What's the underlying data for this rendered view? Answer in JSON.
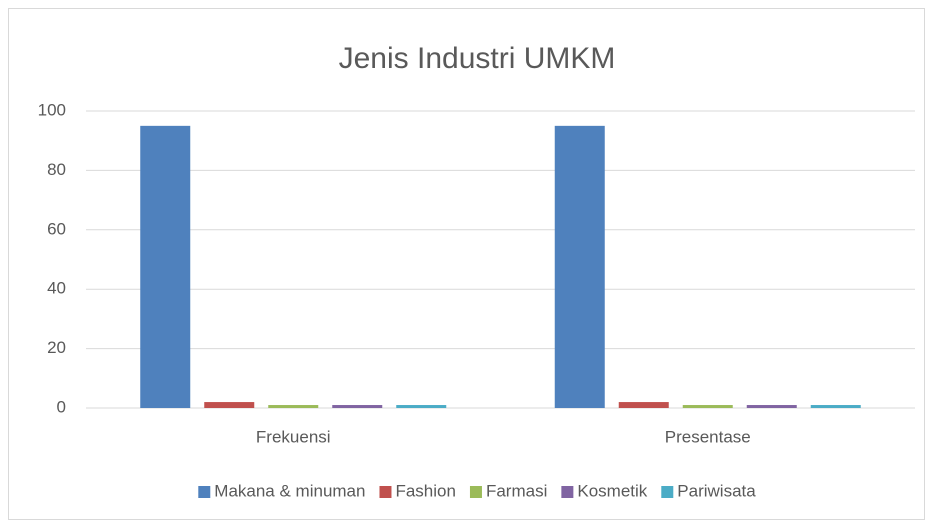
{
  "chart_data": {
    "type": "bar",
    "title": "Jenis Industri UMKM",
    "categories": [
      "Frekuensi",
      "Presentase"
    ],
    "series": [
      {
        "name": "Makana & minuman",
        "color": "#4f81bd",
        "values": [
          95,
          95
        ]
      },
      {
        "name": "Fashion",
        "color": "#c0504d",
        "values": [
          2,
          2
        ]
      },
      {
        "name": "Farmasi",
        "color": "#9bbb59",
        "values": [
          1,
          1
        ]
      },
      {
        "name": "Kosmetik",
        "color": "#8064a2",
        "values": [
          1,
          1
        ]
      },
      {
        "name": "Pariwisata",
        "color": "#4bacc6",
        "values": [
          1,
          1
        ]
      }
    ],
    "ylim": [
      0,
      100
    ],
    "yticks": [
      0,
      20,
      40,
      60,
      80,
      100
    ],
    "grid": true,
    "legend": "bottom"
  }
}
